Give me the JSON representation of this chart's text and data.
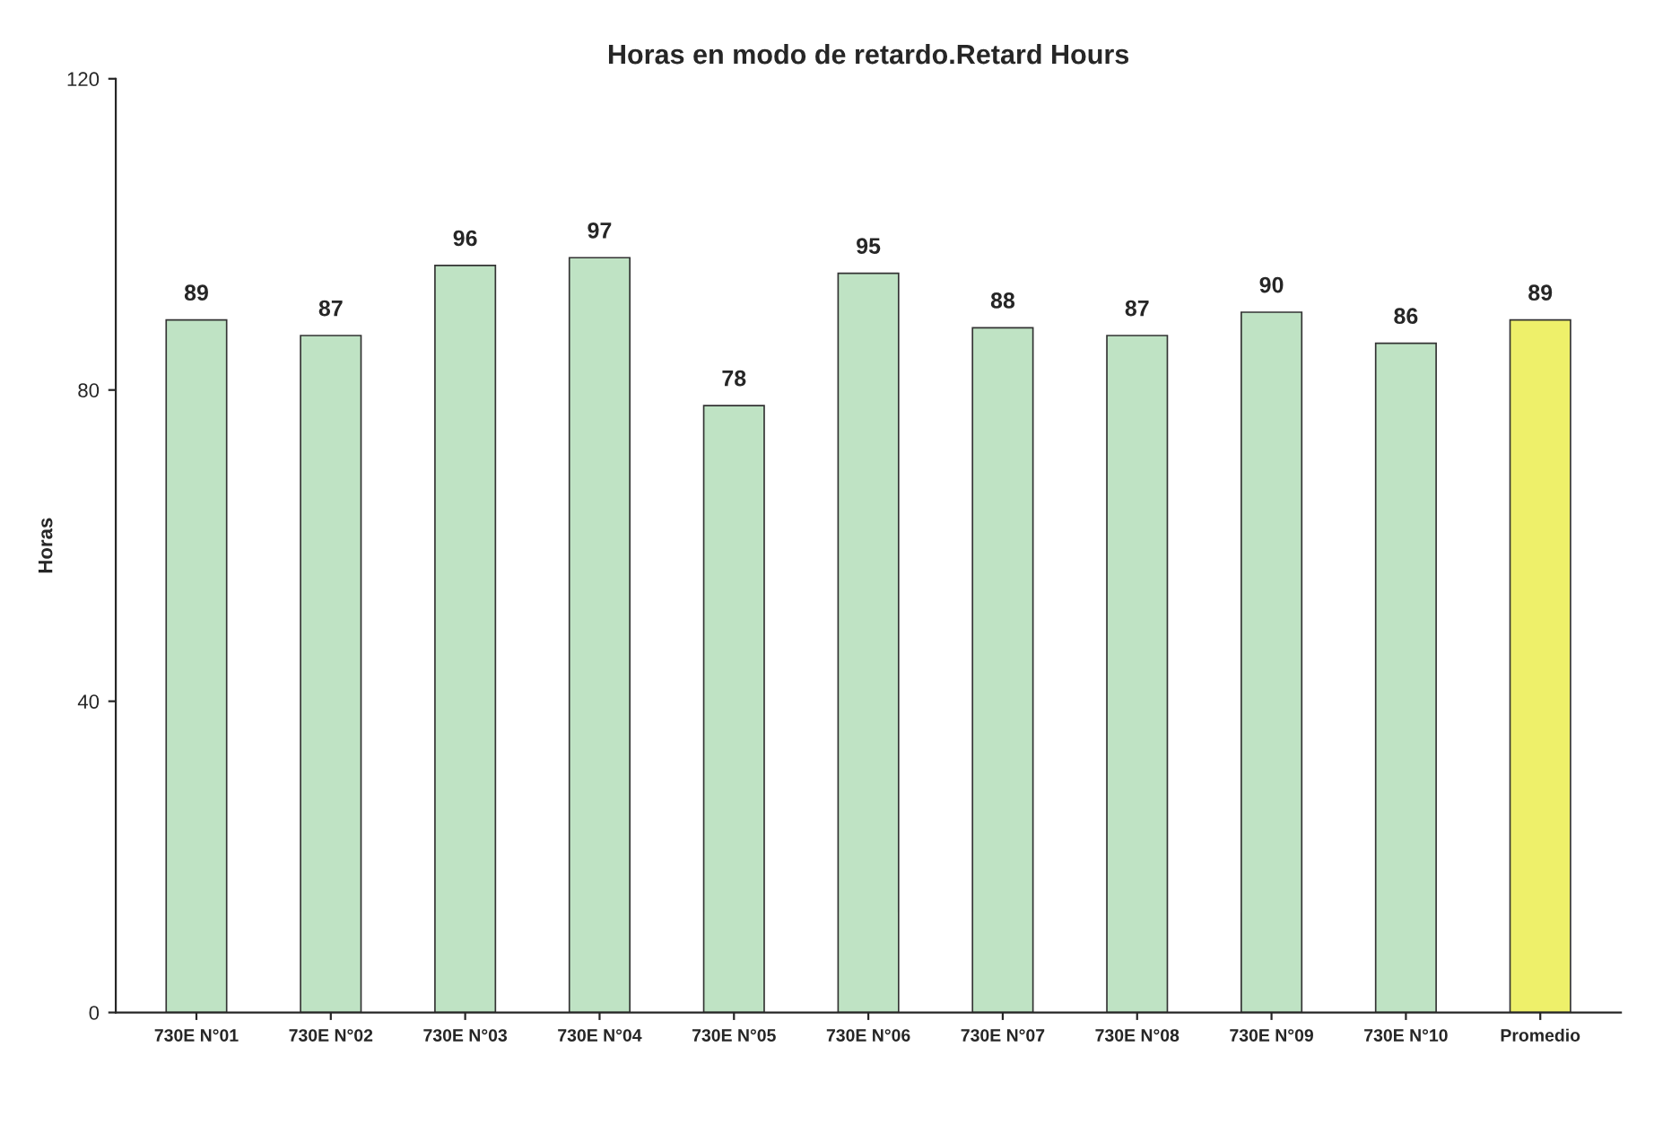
{
  "chart_data": {
    "type": "bar",
    "title": "Horas en modo de retardo.Retard Hours",
    "ylabel": "Horas",
    "categories": [
      "730E N°01",
      "730E N°02",
      "730E N°03",
      "730E N°04",
      "730E N°05",
      "730E N°06",
      "730E N°07",
      "730E N°08",
      "730E N°09",
      "730E N°10",
      "Promedio"
    ],
    "values": [
      89,
      87,
      96,
      97,
      78,
      95,
      88,
      87,
      90,
      86,
      89
    ],
    "colors": [
      "#bfe3c4",
      "#bfe3c4",
      "#bfe3c4",
      "#bfe3c4",
      "#bfe3c4",
      "#bfe3c4",
      "#bfe3c4",
      "#bfe3c4",
      "#bfe3c4",
      "#bfe3c4",
      "#eef06a"
    ],
    "ylim": [
      0,
      120
    ],
    "yticks": [
      0,
      40,
      80,
      120
    ],
    "grid": false,
    "data_labels": true
  }
}
